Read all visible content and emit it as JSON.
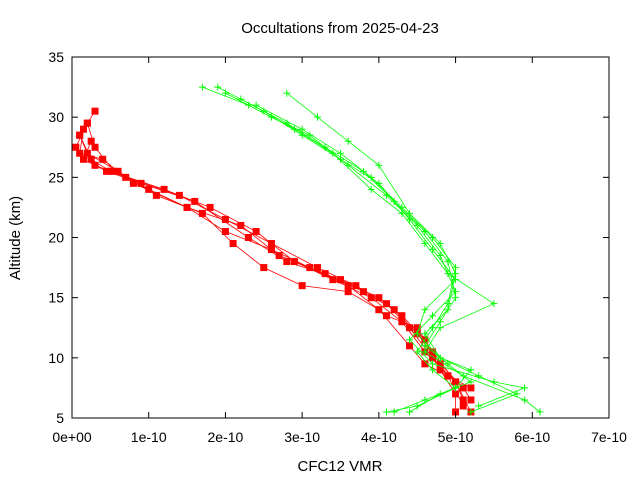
{
  "chart_data": {
    "type": "scatter",
    "title": "Occultations from 2025-04-23",
    "xlabel": "CFC12 VMR",
    "ylabel": "Altitude (km)",
    "xlim": [
      0,
      7e-10
    ],
    "ylim": [
      5,
      35
    ],
    "xticks": [
      0,
      1e-10,
      2e-10,
      3e-10,
      4e-10,
      5e-10,
      6e-10,
      7e-10
    ],
    "xtick_labels": [
      "0e+00",
      "1e-10",
      "2e-10",
      "3e-10",
      "4e-10",
      "5e-10",
      "6e-10",
      "7e-10"
    ],
    "yticks": [
      5,
      10,
      15,
      20,
      25,
      30,
      35
    ],
    "ytick_labels": [
      "5",
      "10",
      "15",
      "20",
      "25",
      "30",
      "35"
    ],
    "grid": false,
    "legend": false,
    "series": [
      {
        "marker": "square",
        "color": "#ff0000",
        "profiles": [
          {
            "x": [
              3e-11,
              1e-11,
              2.5e-11,
              5e-11,
              1.2e-10,
              1.8e-10,
              2.4e-10,
              2.9e-10,
              3.4e-10,
              3.9e-10,
              4.3e-10,
              4.6e-10,
              5e-10,
              5.2e-10
            ],
            "y": [
              30.5,
              28.5,
              26.5,
              25.5,
              24.0,
              22.5,
              20.5,
              18.0,
              16.5,
              15.0,
              13.0,
              10.5,
              8.0,
              5.5
            ]
          },
          {
            "x": [
              2e-11,
              5e-12,
              3e-11,
              7e-11,
              1.4e-10,
              2e-10,
              2.6e-10,
              3.2e-10,
              3.7e-10,
              4.1e-10,
              4.4e-10,
              4.7e-10,
              4.9e-10,
              5.1e-10
            ],
            "y": [
              29.5,
              27.5,
              26.0,
              25.0,
              23.5,
              21.5,
              19.5,
              17.5,
              16.0,
              14.5,
              12.5,
              10.0,
              8.5,
              6.0
            ]
          },
          {
            "x": [
              1.5e-11,
              1e-11,
              4e-11,
              8e-11,
              1.5e-10,
              2.2e-10,
              2.7e-10,
              3.3e-10,
              3.8e-10,
              4.2e-10,
              4.5e-10,
              4.8e-10,
              5.1e-10,
              5.2e-10
            ],
            "y": [
              29.0,
              27.0,
              26.5,
              24.5,
              22.5,
              21.0,
              18.5,
              17.0,
              15.5,
              14.0,
              12.0,
              9.5,
              7.5,
              6.5
            ]
          },
          {
            "x": [
              2.5e-11,
              1.5e-11,
              4.5e-11,
              9e-11,
              1.6e-10,
              2.3e-10,
              2.8e-10,
              3.5e-10,
              4e-10,
              4.3e-10,
              4.6e-10,
              4.8e-10,
              5e-10,
              5e-10
            ],
            "y": [
              28.0,
              26.5,
              25.5,
              24.5,
              23.0,
              20.0,
              18.0,
              16.5,
              15.0,
              13.5,
              11.5,
              9.0,
              7.0,
              5.5
            ]
          },
          {
            "x": [
              1e-11,
              2e-11,
              6e-11,
              1.1e-10,
              1.7e-10,
              2.1e-10,
              2.5e-10,
              3e-10,
              3.6e-10,
              4e-10,
              4.4e-10,
              4.6e-10,
              4.9e-10,
              5.2e-10
            ],
            "y": [
              28.5,
              27.0,
              25.5,
              23.5,
              22.0,
              19.5,
              17.5,
              16.0,
              15.5,
              14.0,
              11.0,
              9.5,
              8.5,
              7.5
            ]
          },
          {
            "x": [
              2e-11,
              3e-11,
              5.5e-11,
              1e-10,
              1.5e-10,
              2e-10,
              2.6e-10,
              3.1e-10,
              3.6e-10,
              4.1e-10,
              4.5e-10,
              4.7e-10,
              5e-10,
              5.1e-10
            ],
            "y": [
              29.5,
              27.5,
              25.5,
              24.0,
              22.5,
              20.5,
              19.0,
              17.5,
              16.0,
              13.5,
              12.5,
              10.5,
              8.0,
              6.5
            ]
          }
        ]
      },
      {
        "marker": "plus",
        "color": "#00ff00",
        "profiles": [
          {
            "x": [
              1.7e-10,
              2.3e-10,
              2.9e-10,
              3.4e-10,
              3.9e-10,
              4.3e-10,
              4.6e-10,
              4.9e-10,
              5.5e-10,
              4.8e-10,
              4.6e-10,
              5.1e-10,
              5.9e-10,
              6.1e-10
            ],
            "y": [
              32.5,
              31.0,
              29.0,
              27.0,
              24.0,
              22.0,
              19.5,
              17.0,
              14.5,
              12.5,
              10.5,
              8.5,
              6.5,
              5.5
            ]
          },
          {
            "x": [
              1.9e-10,
              2.5e-10,
              3e-10,
              3.5e-10,
              4e-10,
              4.4e-10,
              4.7e-10,
              5e-10,
              4.6e-10,
              4.5e-10,
              4.8e-10,
              5.3e-10,
              5.8e-10,
              5.2e-10
            ],
            "y": [
              32.5,
              30.5,
              28.5,
              26.5,
              24.5,
              21.5,
              19.0,
              16.5,
              14.0,
              12.0,
              10.0,
              8.5,
              7.0,
              5.5
            ]
          },
          {
            "x": [
              2e-10,
              2.6e-10,
              3.1e-10,
              3.6e-10,
              4.1e-10,
              4.5e-10,
              4.8e-10,
              5e-10,
              4.7e-10,
              4.4e-10,
              4.7e-10,
              5.5e-10,
              5.9e-10,
              5.3e-10
            ],
            "y": [
              32.0,
              30.0,
              28.5,
              26.0,
              23.5,
              21.0,
              18.5,
              15.5,
              13.5,
              11.5,
              9.5,
              8.0,
              7.5,
              6.0
            ]
          },
          {
            "x": [
              2.2e-10,
              2.8e-10,
              3.3e-10,
              3.8e-10,
              4.2e-10,
              4.6e-10,
              4.9e-10,
              5e-10,
              4.8e-10,
              4.6e-10,
              4.9e-10,
              5.2e-10,
              4.8e-10,
              4.4e-10
            ],
            "y": [
              31.5,
              29.5,
              27.5,
              25.5,
              23.0,
              20.5,
              18.0,
              15.0,
              13.0,
              11.0,
              9.5,
              8.0,
              7.0,
              5.5
            ]
          },
          {
            "x": [
              2.4e-10,
              3e-10,
              3.5e-10,
              3.9e-10,
              4.3e-10,
              4.7e-10,
              5e-10,
              4.9e-10,
              4.7e-10,
              4.5e-10,
              4.7e-10,
              5e-10,
              4.6e-10,
              4.2e-10
            ],
            "y": [
              31.0,
              29.0,
              27.0,
              25.0,
              22.5,
              20.0,
              17.5,
              14.5,
              12.5,
              10.5,
              9.0,
              7.5,
              6.5,
              5.5
            ]
          },
          {
            "x": [
              2.8e-10,
              3.2e-10,
              3.6e-10,
              4e-10,
              4.4e-10,
              4.8e-10,
              5e-10,
              4.9e-10,
              4.6e-10,
              4.8e-10,
              5.2e-10,
              5e-10,
              4.5e-10,
              4.1e-10
            ],
            "y": [
              32.0,
              30.0,
              28.0,
              26.0,
              22.0,
              19.5,
              17.0,
              14.0,
              12.0,
              10.0,
              9.0,
              7.5,
              6.0,
              5.5
            ]
          }
        ]
      }
    ]
  }
}
